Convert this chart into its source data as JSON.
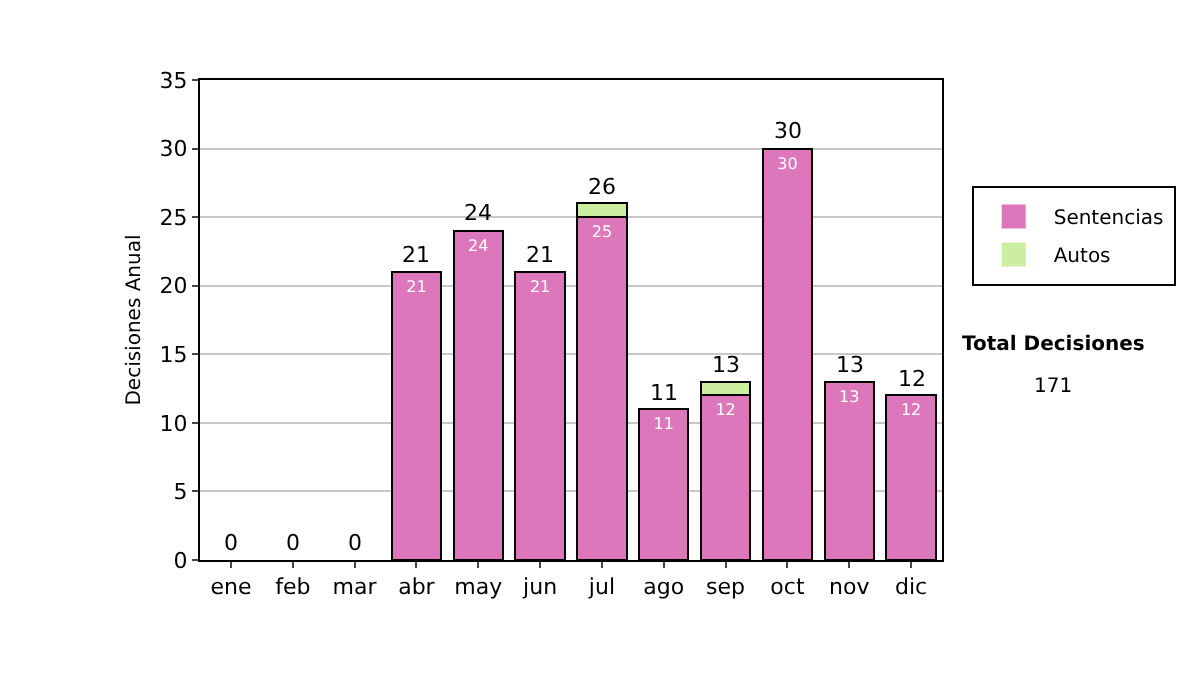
{
  "chart_data": {
    "type": "bar",
    "stacked": true,
    "ylabel": "Decisiones Anual",
    "categories": [
      "ene",
      "feb",
      "mar",
      "abr",
      "may",
      "jun",
      "jul",
      "ago",
      "sep",
      "oct",
      "nov",
      "dic"
    ],
    "series": [
      {
        "name": "Sentencias",
        "color": "#dd77bb",
        "values": [
          0,
          0,
          0,
          21,
          24,
          21,
          25,
          11,
          12,
          30,
          13,
          12
        ],
        "value_labels": [
          null,
          null,
          null,
          "21",
          "24",
          "21",
          "25",
          "11",
          "12",
          "30",
          "13",
          "12"
        ]
      },
      {
        "name": "Autos",
        "color": "#cceea0",
        "values": [
          0,
          0,
          0,
          0,
          0,
          0,
          1,
          0,
          1,
          0,
          0,
          0
        ]
      }
    ],
    "totals": [
      "0",
      "0",
      "0",
      "21",
      "24",
      "21",
      "26",
      "11",
      "13",
      "30",
      "13",
      "12"
    ],
    "ylim": [
      0,
      35
    ],
    "yticks": [
      0,
      5,
      10,
      15,
      20,
      25,
      30,
      35
    ],
    "grid": "y",
    "legend": "right",
    "annotations": [
      "Total Decisiones",
      "171"
    ]
  }
}
